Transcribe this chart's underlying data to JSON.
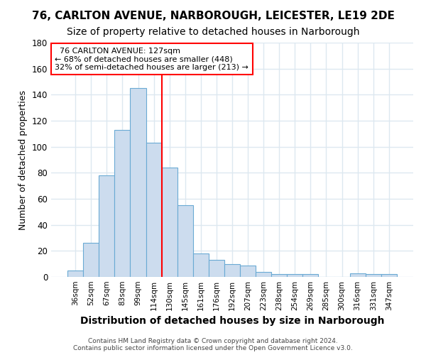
{
  "title": "76, CARLTON AVENUE, NARBOROUGH, LEICESTER, LE19 2DE",
  "subtitle": "Size of property relative to detached houses in Narborough",
  "xlabel": "Distribution of detached houses by size in Narborough",
  "ylabel": "Number of detached properties",
  "bar_labels": [
    "36sqm",
    "52sqm",
    "67sqm",
    "83sqm",
    "99sqm",
    "114sqm",
    "130sqm",
    "145sqm",
    "161sqm",
    "176sqm",
    "192sqm",
    "207sqm",
    "223sqm",
    "238sqm",
    "254sqm",
    "269sqm",
    "285sqm",
    "300sqm",
    "316sqm",
    "331sqm",
    "347sqm"
  ],
  "bar_values": [
    5,
    26,
    78,
    113,
    145,
    103,
    84,
    55,
    18,
    13,
    10,
    9,
    4,
    2,
    2,
    2,
    0,
    0,
    3,
    2,
    2
  ],
  "bar_color": "#ccdcee",
  "bar_edgecolor": "#6aaad4",
  "vline_x": 6.0,
  "annotation_title": "76 CARLTON AVENUE: 127sqm",
  "annotation_line1": "← 68% of detached houses are smaller (448)",
  "annotation_line2": "32% of semi-detached houses are larger (213) →",
  "ylim": [
    0,
    180
  ],
  "yticks": [
    0,
    20,
    40,
    60,
    80,
    100,
    120,
    140,
    160,
    180
  ],
  "footer1": "Contains HM Land Registry data © Crown copyright and database right 2024.",
  "footer2": "Contains public sector information licensed under the Open Government Licence v3.0.",
  "background_color": "#ffffff",
  "grid_color": "#dde8f0",
  "title_fontsize": 11,
  "subtitle_fontsize": 10,
  "xlabel_fontsize": 10,
  "ylabel_fontsize": 9
}
